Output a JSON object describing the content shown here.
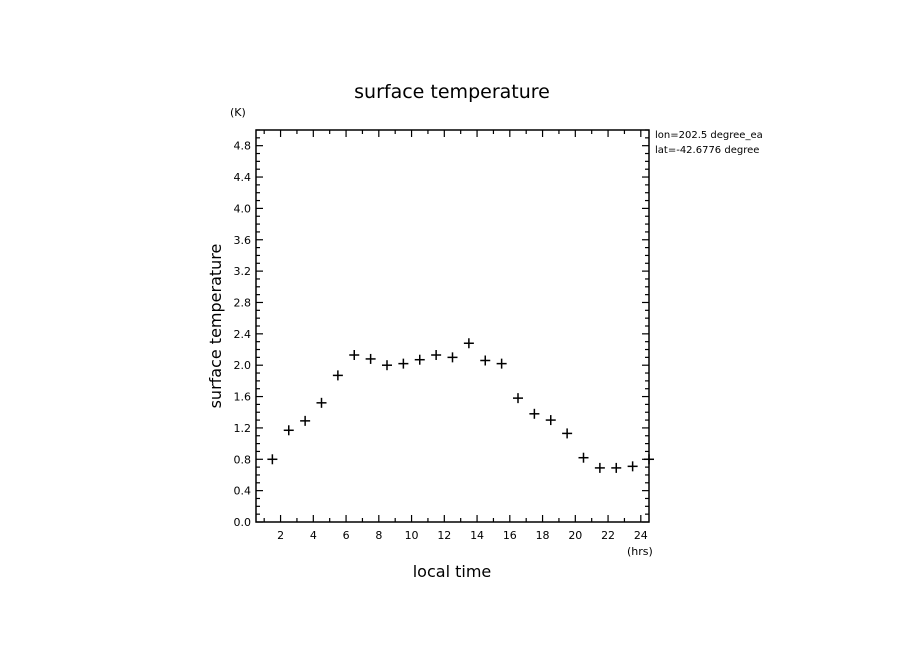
{
  "chart_data": {
    "type": "scatter",
    "title": "surface temperature",
    "xlabel": "local time",
    "ylabel": "surface temperature",
    "x_unit": "(hrs)",
    "y_unit": "(K)",
    "xlim": [
      0.5,
      24.5
    ],
    "ylim": [
      0.0,
      5.0
    ],
    "xticks": [
      "2",
      "4",
      "6",
      "8",
      "10",
      "12",
      "14",
      "16",
      "18",
      "20",
      "22",
      "24"
    ],
    "yticks": [
      "0.0",
      "0.4",
      "0.8",
      "1.2",
      "1.6",
      "2.0",
      "2.4",
      "2.8",
      "3.2",
      "3.6",
      "4.0",
      "4.4",
      "4.8"
    ],
    "info_lines": [
      "lon=202.5 degree_ea",
      "lat=-42.6776 degree"
    ],
    "marker": "+",
    "grid": false,
    "series": [
      {
        "x": [
          1.5,
          2.5,
          3.5,
          4.5,
          5.5,
          6.5,
          7.5,
          8.5,
          9.5,
          10.5,
          11.5,
          12.5,
          13.5,
          14.5,
          15.5,
          16.5,
          17.5,
          18.5,
          19.5,
          20.5,
          21.5,
          22.5,
          23.5,
          24.5
        ],
        "y": [
          0.8,
          1.17,
          1.29,
          1.52,
          1.87,
          2.13,
          2.08,
          2.0,
          2.02,
          2.07,
          2.13,
          2.1,
          2.28,
          2.06,
          2.02,
          1.58,
          1.38,
          1.3,
          1.13,
          0.82,
          0.69,
          0.69,
          0.71,
          0.8
        ]
      }
    ]
  }
}
